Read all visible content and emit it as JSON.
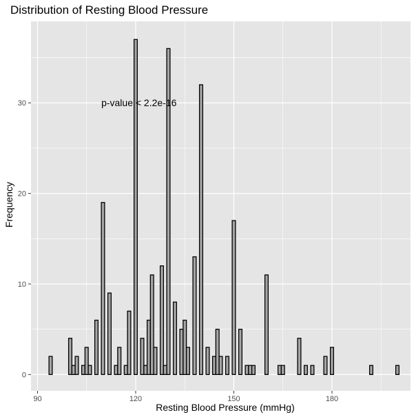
{
  "chart_data": {
    "type": "bar",
    "title": "Distribution of Resting Blood Pressure",
    "xlabel": "Resting Blood Pressure (mmHg)",
    "ylabel": "Frequency",
    "xlim": [
      88,
      204
    ],
    "ylim": [
      -1.8,
      39
    ],
    "x_ticks": [
      90,
      120,
      150,
      180
    ],
    "y_ticks": [
      0,
      10,
      20,
      30
    ],
    "bin_width": 1,
    "annotation": {
      "text": "p-value < 2.2e-16",
      "x": 121,
      "y": 30
    },
    "grid": true,
    "legend": "none",
    "colors": {
      "panel": "#e5e5e5",
      "grid": "#ffffff",
      "bar_fill": "#a6a6a6",
      "bar_stroke": "#000000"
    },
    "x": [
      94,
      100,
      101,
      102,
      104,
      105,
      106,
      108,
      110,
      112,
      114,
      115,
      117,
      118,
      120,
      122,
      123,
      124,
      125,
      126,
      128,
      129,
      130,
      132,
      134,
      135,
      136,
      138,
      140,
      142,
      144,
      145,
      146,
      148,
      150,
      152,
      154,
      155,
      156,
      160,
      164,
      165,
      170,
      172,
      174,
      178,
      180,
      192,
      200
    ],
    "values": [
      2,
      4,
      1,
      2,
      1,
      3,
      1,
      6,
      19,
      9,
      1,
      3,
      1,
      7,
      37,
      4,
      1,
      6,
      11,
      3,
      12,
      1,
      36,
      8,
      5,
      6,
      3,
      13,
      32,
      3,
      2,
      5,
      2,
      2,
      17,
      5,
      1,
      1,
      1,
      11,
      1,
      1,
      4,
      1,
      1,
      2,
      3,
      1,
      1
    ]
  }
}
